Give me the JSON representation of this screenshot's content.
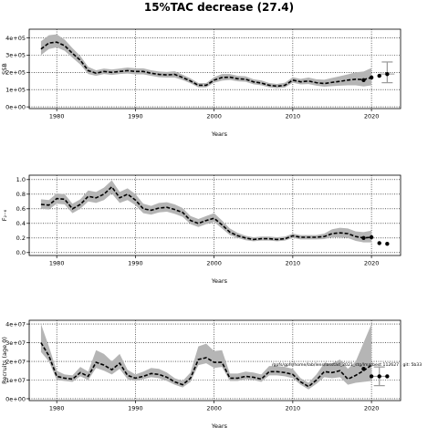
{
  "figure": {
    "title": "15%TAC decrease (27.4)",
    "annotation": "/gpfs/gpfs/home/lab/lens/lasstad_2021_stg/lmatbest 112627 , git: 5b33"
  },
  "chart_data": [
    {
      "type": "line",
      "name_key": "ssb",
      "title": "",
      "xlabel": "Years",
      "ylabel": "SSB",
      "xlim": [
        1976.5,
        2023.7
      ],
      "ylim": [
        -10000,
        450000
      ],
      "xticks": [
        1980,
        1990,
        2000,
        2010,
        2020
      ],
      "xtick_labels": [
        "1980",
        "1990",
        "2000",
        "2010",
        "2020"
      ],
      "yticks": [
        0,
        100000,
        200000,
        300000,
        400000
      ],
      "ytick_labels": [
        "0e+00",
        "1e+05",
        "2e+05",
        "3e+05",
        "4e+05"
      ],
      "grid": true,
      "x": [
        1978,
        1979,
        1980,
        1981,
        1982,
        1983,
        1984,
        1985,
        1986,
        1987,
        1988,
        1989,
        1990,
        1991,
        1992,
        1993,
        1994,
        1995,
        1996,
        1997,
        1998,
        1999,
        2000,
        2001,
        2002,
        2003,
        2004,
        2005,
        2006,
        2007,
        2008,
        2009,
        2010,
        2011,
        2012,
        2013,
        2014,
        2015,
        2016,
        2017,
        2018,
        2019,
        2020
      ],
      "series": [
        {
          "values": [
            335000,
            370000,
            375000,
            355000,
            310000,
            270000,
            210000,
            195000,
            205000,
            200000,
            205000,
            210000,
            205000,
            205000,
            195000,
            188000,
            185000,
            188000,
            170000,
            150000,
            125000,
            125000,
            155000,
            170000,
            172000,
            163000,
            160000,
            145000,
            138000,
            125000,
            120000,
            125000,
            155000,
            145000,
            150000,
            140000,
            135000,
            142000,
            148000,
            155000,
            160000,
            158000,
            170000
          ],
          "lower": [
            300000,
            335000,
            345000,
            325000,
            285000,
            245000,
            190000,
            180000,
            190000,
            185000,
            190000,
            193000,
            188000,
            188000,
            180000,
            172000,
            170000,
            170000,
            155000,
            137000,
            113000,
            113000,
            140000,
            152000,
            156000,
            148000,
            145000,
            131000,
            125000,
            113000,
            108000,
            112000,
            140000,
            130000,
            132000,
            123000,
            117000,
            120000,
            123000,
            125000,
            125000,
            118000,
            125000
          ],
          "upper": [
            380000,
            415000,
            420000,
            390000,
            340000,
            295000,
            232000,
            212000,
            222000,
            217000,
            222000,
            228000,
            223000,
            223000,
            212000,
            205000,
            202000,
            206000,
            186000,
            165000,
            138000,
            138000,
            172000,
            190000,
            190000,
            180000,
            177000,
            160000,
            153000,
            138000,
            133000,
            140000,
            172000,
            162000,
            170000,
            160000,
            157000,
            168000,
            178000,
            188000,
            200000,
            205000,
            225000
          ]
        }
      ],
      "points": {
        "x": [
          2019,
          2020,
          2021,
          2022
        ],
        "y": [
          155000,
          170000,
          180000,
          190000
        ]
      },
      "errorbar": {
        "x": 2022,
        "y": 190000,
        "low": 140000,
        "high": 260000
      }
    },
    {
      "type": "line",
      "name_key": "f",
      "title": "",
      "xlabel": "Years",
      "ylabel": "F₂₋₆",
      "xlim": [
        1976.5,
        2023.7
      ],
      "ylim": [
        -0.04,
        1.06
      ],
      "xticks": [
        1980,
        1990,
        2000,
        2010,
        2020
      ],
      "xtick_labels": [
        "1980",
        "1990",
        "2000",
        "2010",
        "2020"
      ],
      "yticks": [
        0.0,
        0.2,
        0.4,
        0.6,
        0.8,
        1.0
      ],
      "ytick_labels": [
        "0.0",
        "0.2",
        "0.4",
        "0.6",
        "0.8",
        "1.0"
      ],
      "grid": true,
      "x": [
        1978,
        1979,
        1980,
        1981,
        1982,
        1983,
        1984,
        1985,
        1986,
        1987,
        1988,
        1989,
        1990,
        1991,
        1992,
        1993,
        1994,
        1995,
        1996,
        1997,
        1998,
        1999,
        2000,
        2001,
        2002,
        2003,
        2004,
        2005,
        2006,
        2007,
        2008,
        2009,
        2010,
        2011,
        2012,
        2013,
        2014,
        2015,
        2016,
        2017,
        2018,
        2019,
        2020
      ],
      "series": [
        {
          "values": [
            0.66,
            0.65,
            0.74,
            0.73,
            0.6,
            0.66,
            0.77,
            0.75,
            0.8,
            0.9,
            0.75,
            0.8,
            0.72,
            0.6,
            0.58,
            0.61,
            0.62,
            0.59,
            0.55,
            0.44,
            0.4,
            0.44,
            0.47,
            0.38,
            0.28,
            0.23,
            0.2,
            0.18,
            0.19,
            0.19,
            0.18,
            0.19,
            0.23,
            0.21,
            0.21,
            0.21,
            0.22,
            0.26,
            0.27,
            0.26,
            0.22,
            0.2,
            0.21
          ],
          "lower": [
            0.6,
            0.59,
            0.67,
            0.66,
            0.54,
            0.6,
            0.7,
            0.68,
            0.72,
            0.81,
            0.68,
            0.72,
            0.65,
            0.54,
            0.52,
            0.55,
            0.56,
            0.53,
            0.49,
            0.39,
            0.35,
            0.39,
            0.42,
            0.33,
            0.24,
            0.2,
            0.17,
            0.155,
            0.165,
            0.165,
            0.155,
            0.165,
            0.2,
            0.18,
            0.18,
            0.18,
            0.185,
            0.21,
            0.21,
            0.2,
            0.16,
            0.14,
            0.14
          ],
          "upper": [
            0.73,
            0.72,
            0.81,
            0.8,
            0.67,
            0.73,
            0.85,
            0.83,
            0.89,
            0.99,
            0.83,
            0.88,
            0.8,
            0.67,
            0.64,
            0.68,
            0.69,
            0.66,
            0.61,
            0.5,
            0.46,
            0.5,
            0.54,
            0.44,
            0.33,
            0.27,
            0.23,
            0.21,
            0.22,
            0.22,
            0.21,
            0.22,
            0.26,
            0.24,
            0.24,
            0.24,
            0.26,
            0.32,
            0.34,
            0.33,
            0.29,
            0.28,
            0.3
          ]
        }
      ],
      "points": {
        "x": [
          2019,
          2020,
          2021,
          2022
        ],
        "y": [
          0.2,
          0.21,
          0.13,
          0.12
        ]
      },
      "errorbar": null
    },
    {
      "type": "line",
      "name_key": "rec",
      "title": "",
      "xlabel": "Years",
      "ylabel": "Recruits (age 0)",
      "xlim": [
        1976.5,
        2023.7
      ],
      "ylim": [
        -1000000,
        42000000
      ],
      "xticks": [
        1980,
        1990,
        2000,
        2010,
        2020
      ],
      "xtick_labels": [
        "1980",
        "1990",
        "2000",
        "2010",
        "2020"
      ],
      "yticks": [
        0,
        10000000,
        20000000,
        30000000,
        40000000
      ],
      "ytick_labels": [
        "0e+00",
        "1e+07",
        "2e+07",
        "3e+07",
        "4e+07"
      ],
      "grid": true,
      "x": [
        1978,
        1979,
        1980,
        1981,
        1982,
        1983,
        1984,
        1985,
        1986,
        1987,
        1988,
        1989,
        1990,
        1991,
        1992,
        1993,
        1994,
        1995,
        1996,
        1997,
        1998,
        1999,
        2000,
        2001,
        2002,
        2003,
        2004,
        2005,
        2006,
        2007,
        2008,
        2009,
        2010,
        2011,
        2012,
        2013,
        2014,
        2015,
        2016,
        2017,
        2018,
        2019,
        2020
      ],
      "series": [
        {
          "values": [
            30000000,
            23000000,
            12000000,
            11000000,
            10500000,
            14000000,
            12000000,
            19500000,
            18000000,
            15500000,
            19000000,
            12500000,
            11000000,
            12000000,
            13500000,
            13000000,
            11500000,
            9000000,
            7500000,
            11000000,
            21000000,
            22000000,
            19500000,
            19500000,
            11000000,
            11000000,
            12000000,
            11500000,
            10500000,
            14500000,
            14500000,
            14000000,
            13000000,
            9000000,
            6500000,
            10000000,
            14500000,
            14000000,
            15000000,
            10500000,
            12500000,
            15000000,
            18000000
          ],
          "lower": [
            25000000,
            20000000,
            10000000,
            9500000,
            9000000,
            12000000,
            10000000,
            16500000,
            15000000,
            13000000,
            16000000,
            10500000,
            9500000,
            10500000,
            11500000,
            11000000,
            9500000,
            7500000,
            6000000,
            9000000,
            18000000,
            19000000,
            16500000,
            17000000,
            9500000,
            9500000,
            10500000,
            10000000,
            9000000,
            12500000,
            12500000,
            12000000,
            11000000,
            7500000,
            5000000,
            8000000,
            11500000,
            11000000,
            11500000,
            7500000,
            8500000,
            9000000,
            9500000
          ],
          "upper": [
            40000000,
            28000000,
            15000000,
            13000000,
            12500000,
            17000000,
            14500000,
            26000000,
            24000000,
            20000000,
            24000000,
            15500000,
            13000000,
            14500000,
            16500000,
            16000000,
            14000000,
            11000000,
            9500000,
            14000000,
            28000000,
            29500000,
            25500000,
            26000000,
            13500000,
            13500000,
            14500000,
            14000000,
            13000000,
            17500000,
            17500000,
            17000000,
            16000000,
            11000000,
            8500000,
            13000000,
            19000000,
            19000000,
            21000000,
            16000000,
            20000000,
            30000000,
            40000000
          ]
        }
      ],
      "points": {
        "x": [
          2019,
          2020,
          2021,
          2022
        ],
        "y": [
          16000000,
          12000000,
          12000000,
          12000000
        ]
      },
      "errorbar": {
        "x": 2021,
        "y": 12000000,
        "low": 7000000,
        "high": 17000000
      }
    }
  ],
  "colors": {
    "band": "#b5b5b5",
    "line": "#000000",
    "errorbar": "#999999",
    "grid": "#000000"
  }
}
